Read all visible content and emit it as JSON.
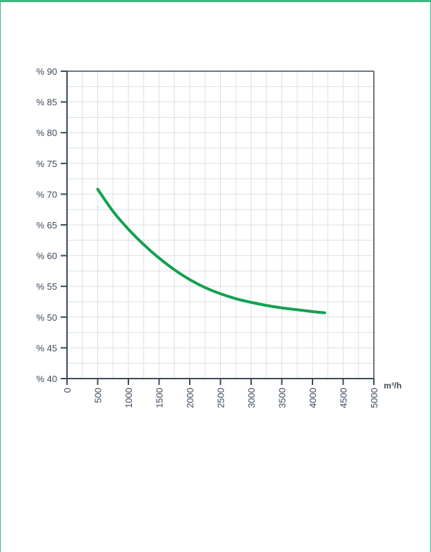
{
  "chart_data": {
    "type": "line",
    "title": "",
    "xlabel": "",
    "ylabel": "",
    "x_unit": "m³/h",
    "xlim": [
      0,
      5000
    ],
    "ylim": [
      40,
      90
    ],
    "grid": true,
    "x_ticks": [
      0,
      500,
      1000,
      1500,
      2000,
      2500,
      3000,
      3500,
      4000,
      4500,
      5000
    ],
    "x_tick_labels": [
      "0",
      "500",
      "1000",
      "1500",
      "2000",
      "2500",
      "3000",
      "3500",
      "4000",
      "4500",
      "5000"
    ],
    "y_ticks": [
      40,
      45,
      50,
      55,
      60,
      65,
      70,
      75,
      80,
      85,
      90
    ],
    "y_tick_labels": [
      "% 40",
      "% 45",
      "% 50",
      "% 55",
      "% 60",
      "% 65",
      "% 70",
      "% 75",
      "% 80",
      "% 85",
      "% 90"
    ],
    "series": [
      {
        "color": "#13a150",
        "x": [
          500,
          750,
          1000,
          1250,
          1500,
          1750,
          2000,
          2250,
          2500,
          2750,
          3000,
          3250,
          3500,
          3750,
          4000,
          4200
        ],
        "y": [
          70.8,
          67.2,
          64.3,
          61.8,
          59.6,
          57.7,
          56.1,
          54.8,
          53.8,
          53.0,
          52.4,
          51.9,
          51.5,
          51.2,
          50.9,
          50.7
        ]
      }
    ]
  },
  "colors": {
    "frame": "#41b883",
    "axis": "#3d4a5c",
    "grid": "#dcdfe4",
    "curve": "#13a150"
  }
}
